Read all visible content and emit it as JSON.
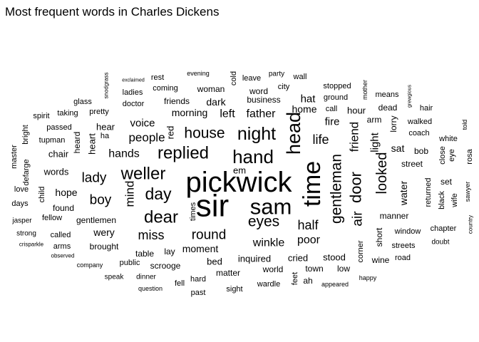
{
  "chart_data": {
    "type": "wordcloud",
    "title": "Most frequent words in Charles Dickens",
    "word_color": "#000000",
    "background": "#ffffff",
    "words": [
      {
        "text": "sir",
        "size": 44
      },
      {
        "text": "pickwick",
        "size": 40
      },
      {
        "text": "time",
        "size": 34
      },
      {
        "text": "sam",
        "size": 31
      },
      {
        "text": "head",
        "size": 27
      },
      {
        "text": "hand",
        "size": 26
      },
      {
        "text": "night",
        "size": 25
      },
      {
        "text": "dear",
        "size": 24
      },
      {
        "text": "weller",
        "size": 24
      },
      {
        "text": "replied",
        "size": 24
      },
      {
        "text": "day",
        "size": 23
      },
      {
        "text": "door",
        "size": 22
      },
      {
        "text": "gentleman",
        "size": 21
      },
      {
        "text": "eyes",
        "size": 21
      },
      {
        "text": "house",
        "size": 21
      },
      {
        "text": "looked",
        "size": 20
      },
      {
        "text": "boy",
        "size": 19
      },
      {
        "text": "lady",
        "size": 19
      },
      {
        "text": "round",
        "size": 19
      },
      {
        "text": "air",
        "size": 19
      },
      {
        "text": "half",
        "size": 18
      },
      {
        "text": "miss",
        "size": 18
      },
      {
        "text": "life",
        "size": 18
      },
      {
        "text": "people",
        "size": 17
      },
      {
        "text": "friend",
        "size": 17
      },
      {
        "text": "mind",
        "size": 17
      },
      {
        "text": "hands",
        "size": 16
      },
      {
        "text": "left",
        "size": 16
      },
      {
        "text": "father",
        "size": 16
      },
      {
        "text": "poor",
        "size": 16
      },
      {
        "text": "winkle",
        "size": 16
      },
      {
        "text": "light",
        "size": 15
      },
      {
        "text": "fire",
        "size": 15
      },
      {
        "text": "voice",
        "size": 15
      },
      {
        "text": "hat",
        "size": 15
      },
      {
        "text": "water",
        "size": 14
      },
      {
        "text": "morning",
        "size": 14
      },
      {
        "text": "dark",
        "size": 14
      },
      {
        "text": "home",
        "size": 14
      },
      {
        "text": "wery",
        "size": 14
      },
      {
        "text": "moment",
        "size": 14
      },
      {
        "text": "hope",
        "size": 14
      },
      {
        "text": "sat",
        "size": 14
      },
      {
        "text": "cried",
        "size": 13
      },
      {
        "text": "stood",
        "size": 13
      },
      {
        "text": "inquired",
        "size": 13
      },
      {
        "text": "bed",
        "size": 13
      },
      {
        "text": "heart",
        "size": 13
      },
      {
        "text": "hour",
        "size": 13
      },
      {
        "text": "chair",
        "size": 13
      },
      {
        "text": "words",
        "size": 13
      },
      {
        "text": "em",
        "size": 13
      },
      {
        "text": "red",
        "size": 13
      },
      {
        "text": "hear",
        "size": 13
      },
      {
        "text": "friends",
        "size": 12
      },
      {
        "text": "woman",
        "size": 12
      },
      {
        "text": "word",
        "size": 12
      },
      {
        "text": "gentlemen",
        "size": 12
      },
      {
        "text": "found",
        "size": 12
      },
      {
        "text": "short",
        "size": 12
      },
      {
        "text": "business",
        "size": 12
      },
      {
        "text": "street",
        "size": 12
      },
      {
        "text": "bob",
        "size": 12
      },
      {
        "text": "manner",
        "size": 12
      },
      {
        "text": "table",
        "size": 12
      },
      {
        "text": "lay",
        "size": 12
      },
      {
        "text": "scrooge",
        "size": 12
      },
      {
        "text": "brought",
        "size": 12
      },
      {
        "text": "matter",
        "size": 12
      },
      {
        "text": "town",
        "size": 12
      },
      {
        "text": "world",
        "size": 12
      },
      {
        "text": "ah",
        "size": 12
      },
      {
        "text": "low",
        "size": 12
      },
      {
        "text": "wine",
        "size": 12
      },
      {
        "text": "arm",
        "size": 12
      },
      {
        "text": "dead",
        "size": 12
      },
      {
        "text": "set",
        "size": 12
      },
      {
        "text": "lorry",
        "size": 12
      },
      {
        "text": "heard",
        "size": 12
      },
      {
        "text": "pretty",
        "size": 11
      },
      {
        "text": "doctor",
        "size": 11
      },
      {
        "text": "ladies",
        "size": 11
      },
      {
        "text": "coming",
        "size": 11
      },
      {
        "text": "rest",
        "size": 11
      },
      {
        "text": "city",
        "size": 11
      },
      {
        "text": "leave",
        "size": 11
      },
      {
        "text": "wall",
        "size": 11
      },
      {
        "text": "cold",
        "size": 11
      },
      {
        "text": "stopped",
        "size": 11
      },
      {
        "text": "ground",
        "size": 11
      },
      {
        "text": "call",
        "size": 11
      },
      {
        "text": "means",
        "size": 11
      },
      {
        "text": "walked",
        "size": 11
      },
      {
        "text": "coach",
        "size": 11
      },
      {
        "text": "hair",
        "size": 11
      },
      {
        "text": "close",
        "size": 11
      },
      {
        "text": "eye",
        "size": 11
      },
      {
        "text": "black",
        "size": 11
      },
      {
        "text": "returned",
        "size": 11
      },
      {
        "text": "wife",
        "size": 11
      },
      {
        "text": "chapter",
        "size": 11
      },
      {
        "text": "window",
        "size": 11
      },
      {
        "text": "road",
        "size": 11
      },
      {
        "text": "streets",
        "size": 11
      },
      {
        "text": "corner",
        "size": 11
      },
      {
        "text": "feet",
        "size": 11
      },
      {
        "text": "wardle",
        "size": 11
      },
      {
        "text": "sight",
        "size": 11
      },
      {
        "text": "past",
        "size": 11
      },
      {
        "text": "fell",
        "size": 11
      },
      {
        "text": "hard",
        "size": 11
      },
      {
        "text": "times",
        "size": 11
      },
      {
        "text": "public",
        "size": 11
      },
      {
        "text": "arms",
        "size": 11
      },
      {
        "text": "called",
        "size": 11
      },
      {
        "text": "fellow",
        "size": 11
      },
      {
        "text": "days",
        "size": 11
      },
      {
        "text": "love",
        "size": 11
      },
      {
        "text": "child",
        "size": 11
      },
      {
        "text": "ha",
        "size": 11
      },
      {
        "text": "tupman",
        "size": 11
      },
      {
        "text": "passed",
        "size": 11
      },
      {
        "text": "taking",
        "size": 11
      },
      {
        "text": "glass",
        "size": 11
      },
      {
        "text": "spirit",
        "size": 11
      },
      {
        "text": "bright",
        "size": 11
      },
      {
        "text": "master",
        "size": 11
      },
      {
        "text": "defarge",
        "size": 11
      },
      {
        "text": "rosa",
        "size": 11
      },
      {
        "text": "white",
        "size": 11
      },
      {
        "text": "doubt",
        "size": 10
      },
      {
        "text": "jasper",
        "size": 10
      },
      {
        "text": "strong",
        "size": 10
      },
      {
        "text": "speak",
        "size": 10
      },
      {
        "text": "dinner",
        "size": 10
      },
      {
        "text": "party",
        "size": 10
      },
      {
        "text": "evening",
        "size": 9
      },
      {
        "text": "company",
        "size": 9
      },
      {
        "text": "question",
        "size": 9
      },
      {
        "text": "appeared",
        "size": 9
      },
      {
        "text": "happy",
        "size": 9
      },
      {
        "text": "mother",
        "size": 9
      },
      {
        "text": "told",
        "size": 9
      },
      {
        "text": "sawyer",
        "size": 9
      },
      {
        "text": "country",
        "size": 8
      },
      {
        "text": "observed",
        "size": 8
      },
      {
        "text": "crisparkle",
        "size": 8
      },
      {
        "text": "snodgrass",
        "size": 8
      },
      {
        "text": "exclaimed",
        "size": 7
      },
      {
        "text": "grewgious",
        "size": 7
      }
    ]
  }
}
